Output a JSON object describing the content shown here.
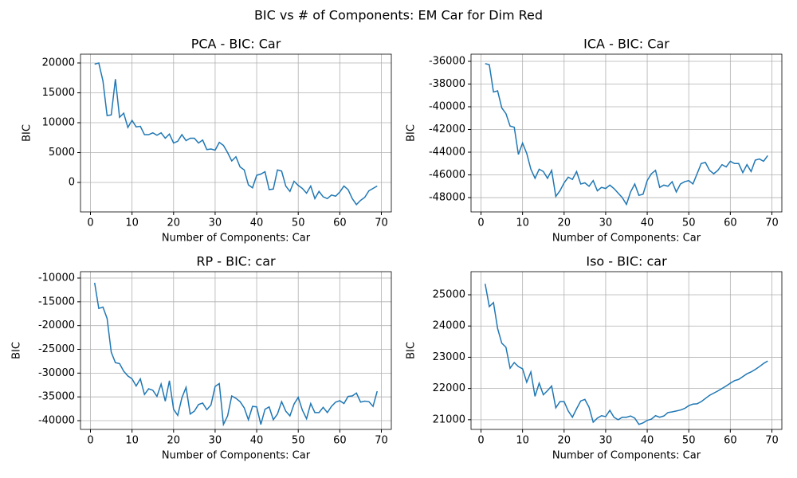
{
  "title": "BIC vs # of Components: EM Car for Dim Red",
  "chart_data": [
    {
      "type": "line",
      "title": "PCA - BIC: Car",
      "x_label": "Number of Components: Car",
      "y_label": "BIC",
      "grid": true,
      "x": [
        1,
        2,
        3,
        4,
        5,
        6,
        7,
        8,
        9,
        10,
        11,
        12,
        13,
        14,
        15,
        16,
        17,
        18,
        19,
        20,
        21,
        22,
        23,
        24,
        25,
        26,
        27,
        28,
        29,
        30,
        31,
        32,
        33,
        34,
        35,
        36,
        37,
        38,
        39,
        40,
        41,
        42,
        43,
        44,
        45,
        46,
        47,
        48,
        49,
        50,
        51,
        52,
        53,
        54,
        55,
        56,
        57,
        58,
        59,
        60,
        61,
        62,
        63,
        64,
        65,
        66,
        67,
        68,
        69
      ],
      "series": [
        {
          "color": "#1f77b4",
          "values": [
            19800,
            20000,
            17000,
            11200,
            11300,
            17300,
            10900,
            11600,
            9200,
            10400,
            9300,
            9400,
            8000,
            8000,
            8300,
            7900,
            8300,
            7400,
            8100,
            6600,
            6900,
            8000,
            7000,
            7400,
            7400,
            6600,
            7100,
            5500,
            5600,
            5400,
            6700,
            6200,
            5000,
            3600,
            4300,
            2600,
            2100,
            -400,
            -900,
            1200,
            1400,
            1800,
            -1200,
            -1100,
            2100,
            1900,
            -600,
            -1500,
            200,
            -500,
            -1000,
            -1800,
            -600,
            -2700,
            -1500,
            -2400,
            -2700,
            -2100,
            -2300,
            -1600,
            -600,
            -1200,
            -2700,
            -3700,
            -3000,
            -2500,
            -1400,
            -1000,
            -600
          ]
        }
      ],
      "xlim": [
        -2.4,
        72.4
      ],
      "xticks": [
        0,
        10,
        20,
        30,
        40,
        50,
        60,
        70
      ],
      "ylim": [
        -4930,
        21470
      ],
      "yticks": [
        0,
        5000,
        10000,
        15000,
        20000
      ]
    },
    {
      "type": "line",
      "title": "ICA - BIC: Car",
      "x_label": "Number of Components: Car",
      "y_label": "BIC",
      "grid": true,
      "x": [
        1,
        2,
        3,
        4,
        5,
        6,
        7,
        8,
        9,
        10,
        11,
        12,
        13,
        14,
        15,
        16,
        17,
        18,
        19,
        20,
        21,
        22,
        23,
        24,
        25,
        26,
        27,
        28,
        29,
        30,
        31,
        32,
        33,
        34,
        35,
        36,
        37,
        38,
        39,
        40,
        41,
        42,
        43,
        44,
        45,
        46,
        47,
        48,
        49,
        50,
        51,
        52,
        53,
        54,
        55,
        56,
        57,
        58,
        59,
        60,
        61,
        62,
        63,
        64,
        65,
        66,
        67,
        68,
        69
      ],
      "series": [
        {
          "color": "#1f77b4",
          "values": [
            -36200,
            -36300,
            -38700,
            -38600,
            -40100,
            -40600,
            -41700,
            -41800,
            -44200,
            -43200,
            -44100,
            -45500,
            -46300,
            -45500,
            -45700,
            -46300,
            -45600,
            -47900,
            -47400,
            -46700,
            -46200,
            -46400,
            -45700,
            -46800,
            -46700,
            -47000,
            -46500,
            -47400,
            -47100,
            -47200,
            -46900,
            -47200,
            -47600,
            -48000,
            -48600,
            -47500,
            -46800,
            -47800,
            -47700,
            -46500,
            -45900,
            -45600,
            -47100,
            -46900,
            -47000,
            -46600,
            -47500,
            -46800,
            -46600,
            -46500,
            -46800,
            -45900,
            -45000,
            -44900,
            -45600,
            -45900,
            -45600,
            -45100,
            -45300,
            -44800,
            -45000,
            -45000,
            -45800,
            -45100,
            -45700,
            -44700,
            -44600,
            -44800,
            -44300
          ]
        }
      ],
      "xlim": [
        -2.4,
        72.4
      ],
      "xticks": [
        0,
        10,
        20,
        30,
        40,
        50,
        60,
        70
      ],
      "ylim": [
        -49260,
        -35370
      ],
      "yticks": [
        -48000,
        -46000,
        -44000,
        -42000,
        -40000,
        -38000,
        -36000
      ]
    },
    {
      "type": "line",
      "title": "RP - BIC: car",
      "x_label": "Number of Components: Car",
      "y_label": "BIC",
      "grid": true,
      "x": [
        1,
        2,
        3,
        4,
        5,
        6,
        7,
        8,
        9,
        10,
        11,
        12,
        13,
        14,
        15,
        16,
        17,
        18,
        19,
        20,
        21,
        22,
        23,
        24,
        25,
        26,
        27,
        28,
        29,
        30,
        31,
        32,
        33,
        34,
        35,
        36,
        37,
        38,
        39,
        40,
        41,
        42,
        43,
        44,
        45,
        46,
        47,
        48,
        49,
        50,
        51,
        52,
        53,
        54,
        55,
        56,
        57,
        58,
        59,
        60,
        61,
        62,
        63,
        64,
        65,
        66,
        67,
        68,
        69
      ],
      "series": [
        {
          "color": "#1f77b4",
          "values": [
            -11000,
            -16400,
            -16100,
            -18500,
            -25600,
            -27800,
            -28000,
            -29600,
            -30600,
            -31200,
            -32700,
            -31200,
            -34500,
            -33300,
            -33600,
            -34900,
            -32300,
            -35900,
            -31600,
            -37600,
            -38900,
            -35200,
            -33000,
            -38600,
            -38000,
            -36600,
            -36300,
            -37700,
            -36700,
            -32800,
            -32200,
            -40800,
            -39000,
            -34800,
            -35300,
            -36000,
            -37300,
            -39800,
            -37000,
            -37100,
            -40800,
            -37600,
            -37100,
            -39800,
            -38600,
            -36000,
            -38000,
            -39000,
            -36500,
            -35100,
            -37800,
            -39600,
            -36400,
            -38300,
            -38300,
            -37200,
            -38300,
            -37000,
            -36100,
            -35800,
            -36400,
            -34900,
            -34800,
            -34200,
            -36100,
            -35900,
            -36000,
            -37000,
            -33800
          ]
        }
      ],
      "xlim": [
        -2.4,
        72.4
      ],
      "xticks": [
        0,
        10,
        20,
        30,
        40,
        50,
        60,
        70
      ],
      "ylim": [
        -41840,
        -8660
      ],
      "yticks": [
        -40000,
        -35000,
        -30000,
        -25000,
        -20000,
        -15000,
        -10000
      ]
    },
    {
      "type": "line",
      "title": "Iso - BIC: car",
      "x_label": "Number of Components: Car",
      "y_label": "BIC",
      "grid": true,
      "x": [
        1,
        2,
        3,
        4,
        5,
        6,
        7,
        8,
        9,
        10,
        11,
        12,
        13,
        14,
        15,
        16,
        17,
        18,
        19,
        20,
        21,
        22,
        23,
        24,
        25,
        26,
        27,
        28,
        29,
        30,
        31,
        32,
        33,
        34,
        35,
        36,
        37,
        38,
        39,
        40,
        41,
        42,
        43,
        44,
        45,
        46,
        47,
        48,
        49,
        50,
        51,
        52,
        53,
        54,
        55,
        56,
        57,
        58,
        59,
        60,
        61,
        62,
        63,
        64,
        65,
        66,
        67,
        68,
        69
      ],
      "series": [
        {
          "color": "#1f77b4",
          "values": [
            25350,
            24620,
            24750,
            23920,
            23450,
            23320,
            22650,
            22830,
            22700,
            22630,
            22200,
            22530,
            21750,
            22170,
            21800,
            21930,
            22080,
            21380,
            21580,
            21580,
            21280,
            21080,
            21350,
            21600,
            21650,
            21400,
            20920,
            21050,
            21130,
            21100,
            21300,
            21080,
            21000,
            21080,
            21080,
            21120,
            21050,
            20850,
            20900,
            20980,
            21020,
            21130,
            21080,
            21120,
            21230,
            21250,
            21280,
            21310,
            21360,
            21450,
            21500,
            21510,
            21580,
            21680,
            21780,
            21850,
            21920,
            22000,
            22080,
            22170,
            22250,
            22290,
            22380,
            22470,
            22530,
            22610,
            22700,
            22800,
            22880
          ]
        }
      ],
      "xlim": [
        -2.4,
        72.4
      ],
      "xticks": [
        0,
        10,
        20,
        30,
        40,
        50,
        60,
        70
      ],
      "ylim": [
        20690,
        25740
      ],
      "yticks": [
        21000,
        22000,
        23000,
        24000,
        25000
      ]
    }
  ]
}
